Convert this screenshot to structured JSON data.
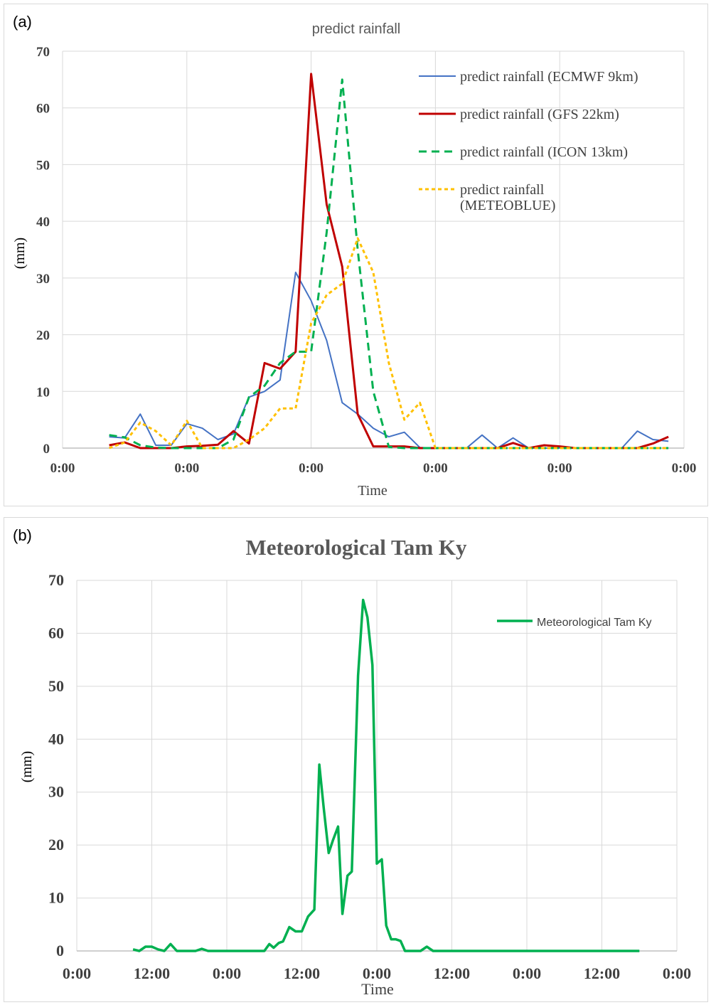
{
  "chart_data": [
    {
      "panel_label": "(a)",
      "type": "line",
      "title": "predict rainfall",
      "xlabel": "Time",
      "ylabel": "(mm)",
      "ylim": [
        0,
        70
      ],
      "yticks": [
        "0",
        "10",
        "20",
        "30",
        "40",
        "50",
        "60",
        "70"
      ],
      "xticks": [
        "0:00",
        "0:00",
        "0:00",
        "0:00",
        "0:00",
        "0:00"
      ],
      "xrange_hours": [
        0,
        240
      ],
      "grid": true,
      "legend_position": "top-right",
      "series": [
        {
          "name": "predict rainfall (ECMWF 9km)",
          "color": "#4472C4",
          "dash": "solid",
          "width": 2,
          "x": [
            18,
            24,
            30,
            36,
            42,
            48,
            54,
            60,
            66,
            72,
            78,
            84,
            90,
            96,
            102,
            108,
            114,
            120,
            126,
            132,
            138,
            144,
            150,
            156,
            162,
            168,
            174,
            180,
            186,
            192,
            198,
            204,
            210,
            216,
            222,
            228,
            234
          ],
          "y": [
            2,
            1.8,
            6,
            0.5,
            0.5,
            4.3,
            3.5,
            1.5,
            2.5,
            9,
            10,
            12,
            31,
            26,
            19,
            8,
            6,
            3.5,
            2,
            2.8,
            0.1,
            0,
            0,
            0,
            2.3,
            0,
            1.8,
            0,
            0,
            0,
            0,
            0,
            0,
            0,
            3,
            1.5,
            1.2
          ]
        },
        {
          "name": "predict rainfall (GFS 22km)",
          "color": "#C00000",
          "dash": "solid",
          "width": 3,
          "x": [
            18,
            24,
            30,
            36,
            42,
            48,
            54,
            60,
            66,
            72,
            78,
            84,
            90,
            96,
            102,
            108,
            114,
            120,
            126,
            132,
            138,
            144,
            150,
            156,
            162,
            168,
            174,
            180,
            186,
            192,
            198,
            204,
            210,
            216,
            222,
            228,
            234
          ],
          "y": [
            0.5,
            1,
            0,
            0,
            0,
            0.3,
            0.4,
            0.6,
            3,
            0.8,
            15,
            14,
            17,
            66,
            43,
            32,
            6,
            0.3,
            0.3,
            0.3,
            0,
            0,
            0,
            0,
            0,
            0,
            0.9,
            0,
            0.5,
            0.3,
            0,
            0,
            0,
            0,
            0,
            0.8,
            2
          ]
        },
        {
          "name": "predict rainfall (ICON 13km)",
          "color": "#00B050",
          "dash": "dashed",
          "width": 3,
          "x": [
            18,
            24,
            30,
            36,
            42,
            48,
            54,
            60,
            66,
            72,
            78,
            84,
            90,
            96,
            102,
            108,
            114,
            120,
            126,
            132,
            138,
            144,
            150,
            156,
            162,
            168,
            174,
            180,
            186,
            192,
            198,
            204,
            210,
            216,
            222,
            228,
            234
          ],
          "y": [
            2.3,
            1.9,
            0.5,
            0.1,
            0,
            0,
            0,
            0,
            1.5,
            9,
            11,
            15,
            17,
            17,
            38,
            65,
            35,
            10,
            0.2,
            0,
            0,
            0,
            0,
            0,
            0,
            0,
            0,
            0,
            0,
            0,
            0,
            0,
            0,
            0,
            0,
            0,
            0
          ]
        },
        {
          "name": "predict rainfall (METEOBLUE)",
          "color": "#FFC000",
          "dash": "dotted",
          "width": 3,
          "x": [
            18,
            24,
            30,
            36,
            42,
            48,
            54,
            60,
            66,
            72,
            78,
            84,
            90,
            96,
            102,
            108,
            114,
            120,
            126,
            132,
            138,
            144,
            150,
            156,
            162,
            168,
            174,
            180,
            186,
            192,
            198,
            204,
            210,
            216,
            222,
            228,
            234
          ],
          "y": [
            0,
            1,
            4.5,
            3,
            0.5,
            4.8,
            0,
            0,
            0,
            1.5,
            3.5,
            7,
            7,
            22,
            27,
            29,
            37,
            31,
            15,
            5,
            8,
            0,
            0,
            0,
            0,
            0,
            0,
            0,
            0,
            0,
            0,
            0,
            0,
            0,
            0,
            0,
            0
          ]
        }
      ]
    },
    {
      "panel_label": "(b)",
      "type": "line",
      "title": "Meteorological Tam Ky",
      "xlabel": "Time",
      "ylabel": "(mm)",
      "ylim": [
        0,
        70
      ],
      "yticks": [
        "0",
        "10",
        "20",
        "30",
        "40",
        "50",
        "60",
        "70"
      ],
      "xticks": [
        "0:00",
        "12:00",
        "0:00",
        "12:00",
        "0:00",
        "12:00",
        "0:00",
        "12:00",
        "0:00"
      ],
      "xrange_hours": [
        0,
        96
      ],
      "grid": true,
      "legend_position": "top-right",
      "series": [
        {
          "name": "Meteorological Tam Ky",
          "color": "#00B050",
          "dash": "solid",
          "width": 3.5,
          "x": [
            9,
            10,
            11,
            12,
            13,
            14,
            15,
            16,
            17,
            18,
            19,
            20,
            21,
            22,
            23,
            24,
            25,
            26,
            27,
            28,
            29,
            30,
            30.8,
            31.5,
            32.3,
            33,
            34,
            35,
            36,
            37,
            38,
            38.8,
            39.5,
            40.3,
            41,
            41.8,
            42.5,
            43.3,
            44,
            45,
            45.8,
            46.5,
            47.3,
            48,
            48.8,
            49.5,
            50.3,
            51,
            51.8,
            52.5,
            53.3,
            54,
            55,
            56,
            57,
            58,
            59,
            60,
            61,
            62,
            63,
            64,
            66,
            68,
            70,
            72,
            74,
            76,
            78,
            80,
            82,
            84,
            86,
            88,
            90
          ],
          "y": [
            0.3,
            0,
            0.8,
            0.8,
            0.3,
            0,
            1.3,
            0,
            0,
            0,
            0,
            0.4,
            0,
            0,
            0,
            0,
            0,
            0,
            0,
            0,
            0,
            0,
            1.3,
            0.6,
            1.5,
            1.8,
            4.5,
            3.7,
            3.7,
            6.5,
            7.8,
            35.2,
            27,
            18.5,
            21,
            23.5,
            7,
            14.2,
            15,
            52,
            66.3,
            63,
            54,
            16.5,
            17.3,
            4.8,
            2.2,
            2.2,
            1.9,
            0,
            0,
            0,
            0,
            0.8,
            0,
            0,
            0,
            0,
            0,
            0,
            0,
            0,
            0,
            0,
            0,
            0,
            0,
            0,
            0,
            0,
            0,
            0,
            0,
            0,
            0
          ]
        }
      ]
    }
  ]
}
